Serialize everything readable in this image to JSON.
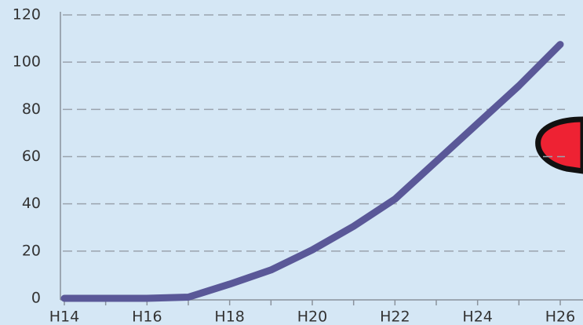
{
  "chart_data": {
    "type": "line",
    "categories": [
      "H14",
      null,
      "H16",
      null,
      "H18",
      null,
      "H20",
      null,
      "H22",
      null,
      "H24",
      null,
      "H26"
    ],
    "series": [
      {
        "color": "#5a5898",
        "values": [
          0,
          0,
          0,
          0.5,
          6,
          12,
          20.5,
          30.5,
          42,
          58,
          74,
          90,
          107.5
        ]
      }
    ],
    "ylim": [
      0,
      120
    ],
    "yticks": [
      0,
      20,
      40,
      60,
      80,
      100,
      120
    ],
    "grid": true
  }
}
